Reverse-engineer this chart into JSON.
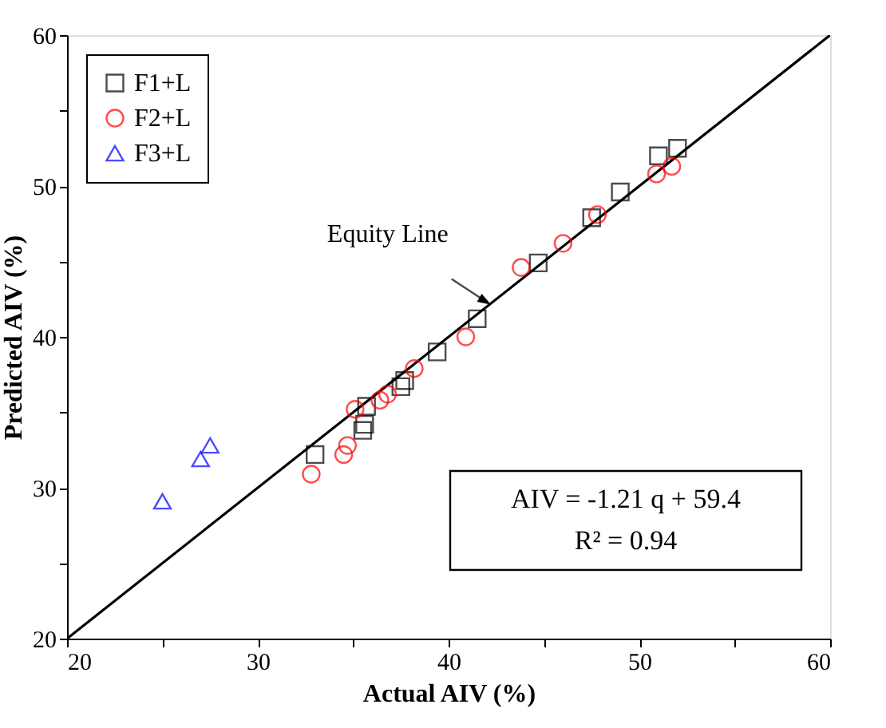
{
  "chart_data": {
    "type": "scatter",
    "xlabel": "Actual AIV (%)",
    "ylabel": "Predicted AIV (%)",
    "xlim": [
      20,
      60
    ],
    "ylim": [
      20,
      60
    ],
    "xticks": [
      20,
      {
        "value": 25,
        "label": null
      },
      30,
      {
        "value": 35,
        "label": null
      },
      40,
      {
        "value": 45,
        "label": null
      },
      50,
      {
        "value": 55,
        "label": null
      },
      60
    ],
    "yticks": [
      20,
      {
        "value": 25,
        "label": null
      },
      30,
      {
        "value": 35,
        "label": null
      },
      40,
      {
        "value": 45,
        "label": null
      },
      50,
      {
        "value": 55,
        "label": null
      },
      60
    ],
    "grid": false,
    "legend": "top left",
    "series": [
      {
        "name": "F1+L",
        "color": "#000000",
        "marker": "square",
        "x": [
          33,
          35.5,
          35.6,
          35.7,
          37.5,
          37.7,
          39.4,
          41.5,
          44.7,
          47.5,
          49,
          51,
          52
        ],
        "values": [
          32.2,
          33.8,
          34.2,
          35.4,
          36.7,
          37.1,
          39,
          41.2,
          44.9,
          47.9,
          49.6,
          52,
          52.5
        ]
      },
      {
        "name": "F2+L",
        "color": "#ff0000",
        "marker": "circle",
        "x": [
          32.8,
          34.5,
          34.7,
          35.1,
          36.4,
          36.8,
          38.2,
          40.9,
          43.8,
          46,
          47.8,
          50.9,
          51.7
        ],
        "values": [
          30.9,
          32.2,
          32.8,
          35.2,
          35.8,
          36.2,
          37.9,
          40,
          44.6,
          46.2,
          48.1,
          50.8,
          51.3
        ]
      },
      {
        "name": "F3+L",
        "color": "#0000ff",
        "marker": "triangle",
        "x": [
          25,
          27,
          27.5
        ],
        "values": [
          29.1,
          31.9,
          32.8
        ]
      },
      {
        "type": "line",
        "color": "#000000",
        "line_style": "solid",
        "x": [
          20,
          60
        ],
        "values": [
          20,
          60
        ]
      }
    ],
    "annotations": [
      {
        "text": "Equity Line",
        "x": 42,
        "y": 42.3
      },
      "AIV = -1.21 q + 59.4",
      "R² = 0.94"
    ]
  }
}
